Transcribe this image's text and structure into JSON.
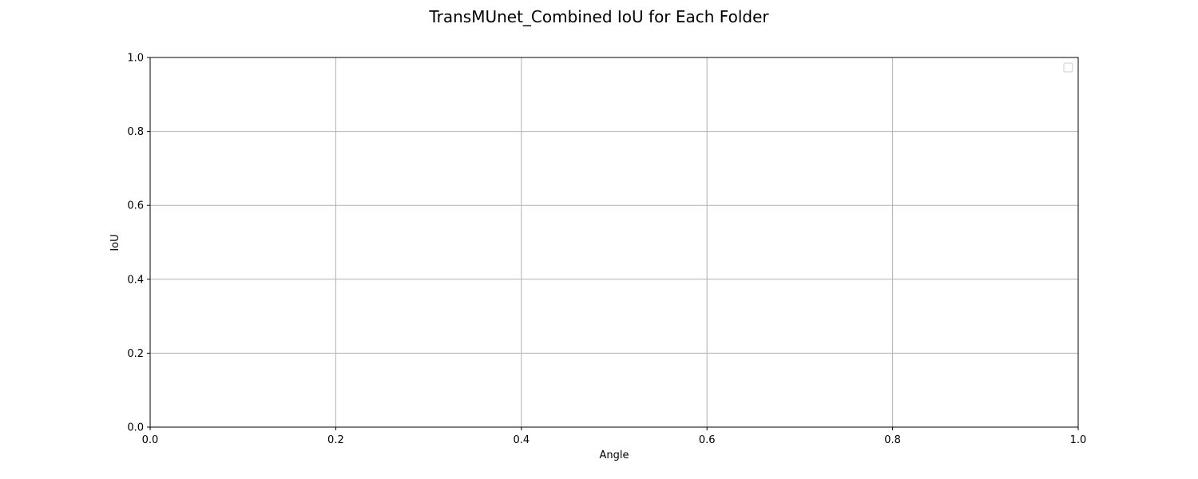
{
  "chart_data": {
    "type": "line",
    "title": "TransMUnet_Combined IoU for Each Folder",
    "xlabel": "Angle",
    "ylabel": "IoU",
    "xlim": [
      0.0,
      1.0
    ],
    "ylim": [
      0.0,
      1.0
    ],
    "x_ticks": [
      "0.0",
      "0.2",
      "0.4",
      "0.6",
      "0.8",
      "1.0"
    ],
    "y_ticks": [
      "0.0",
      "0.2",
      "0.4",
      "0.6",
      "0.8",
      "1.0"
    ],
    "grid": true,
    "legend_position": "top-right",
    "series": []
  }
}
